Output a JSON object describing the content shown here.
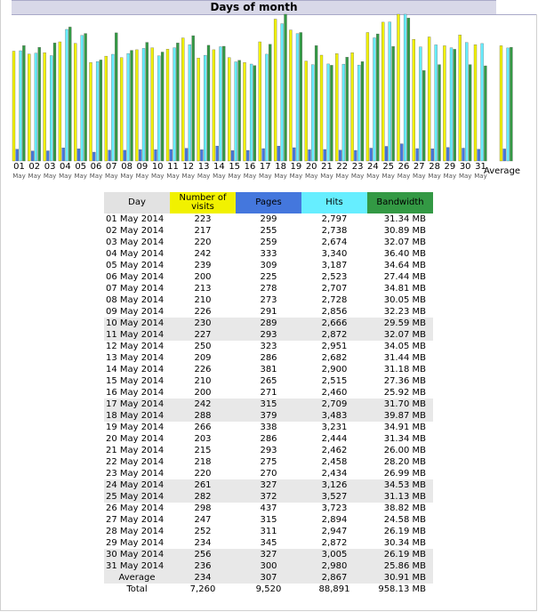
{
  "title": "Days of month",
  "average_label": "Average",
  "colors": {
    "visits": "#f1f100",
    "pages": "#4477dd",
    "hits": "#66eeff",
    "bandwidth": "#339944",
    "header_day": "#e2e2e2",
    "title_bg": "#d8d8e8"
  },
  "table": {
    "headers": {
      "day": "Day",
      "visits": "Number of visits",
      "pages": "Pages",
      "hits": "Hits",
      "bandwidth": "Bandwidth"
    },
    "rows": [
      {
        "day": "01 May 2014",
        "visits": "223",
        "pages": "299",
        "hits": "2,797",
        "bandwidth": "31.34 MB"
      },
      {
        "day": "02 May 2014",
        "visits": "217",
        "pages": "255",
        "hits": "2,738",
        "bandwidth": "30.89 MB"
      },
      {
        "day": "03 May 2014",
        "visits": "220",
        "pages": "259",
        "hits": "2,674",
        "bandwidth": "32.07 MB"
      },
      {
        "day": "04 May 2014",
        "visits": "242",
        "pages": "333",
        "hits": "3,340",
        "bandwidth": "36.40 MB"
      },
      {
        "day": "05 May 2014",
        "visits": "239",
        "pages": "309",
        "hits": "3,187",
        "bandwidth": "34.64 MB"
      },
      {
        "day": "06 May 2014",
        "visits": "200",
        "pages": "225",
        "hits": "2,523",
        "bandwidth": "27.44 MB"
      },
      {
        "day": "07 May 2014",
        "visits": "213",
        "pages": "278",
        "hits": "2,707",
        "bandwidth": "34.81 MB"
      },
      {
        "day": "08 May 2014",
        "visits": "210",
        "pages": "273",
        "hits": "2,728",
        "bandwidth": "30.05 MB"
      },
      {
        "day": "09 May 2014",
        "visits": "226",
        "pages": "291",
        "hits": "2,856",
        "bandwidth": "32.23 MB"
      },
      {
        "day": "10 May 2014",
        "visits": "230",
        "pages": "289",
        "hits": "2,666",
        "bandwidth": "29.59 MB"
      },
      {
        "day": "11 May 2014",
        "visits": "227",
        "pages": "293",
        "hits": "2,872",
        "bandwidth": "32.07 MB"
      },
      {
        "day": "12 May 2014",
        "visits": "250",
        "pages": "323",
        "hits": "2,951",
        "bandwidth": "34.05 MB"
      },
      {
        "day": "13 May 2014",
        "visits": "209",
        "pages": "286",
        "hits": "2,682",
        "bandwidth": "31.44 MB"
      },
      {
        "day": "14 May 2014",
        "visits": "226",
        "pages": "381",
        "hits": "2,900",
        "bandwidth": "31.18 MB"
      },
      {
        "day": "15 May 2014",
        "visits": "210",
        "pages": "265",
        "hits": "2,515",
        "bandwidth": "27.36 MB"
      },
      {
        "day": "16 May 2014",
        "visits": "200",
        "pages": "271",
        "hits": "2,460",
        "bandwidth": "25.92 MB"
      },
      {
        "day": "17 May 2014",
        "visits": "242",
        "pages": "315",
        "hits": "2,709",
        "bandwidth": "31.70 MB"
      },
      {
        "day": "18 May 2014",
        "visits": "288",
        "pages": "379",
        "hits": "3,483",
        "bandwidth": "39.87 MB"
      },
      {
        "day": "19 May 2014",
        "visits": "266",
        "pages": "338",
        "hits": "3,231",
        "bandwidth": "34.91 MB"
      },
      {
        "day": "20 May 2014",
        "visits": "203",
        "pages": "286",
        "hits": "2,444",
        "bandwidth": "31.34 MB"
      },
      {
        "day": "21 May 2014",
        "visits": "215",
        "pages": "293",
        "hits": "2,462",
        "bandwidth": "26.00 MB"
      },
      {
        "day": "22 May 2014",
        "visits": "218",
        "pages": "275",
        "hits": "2,458",
        "bandwidth": "28.20 MB"
      },
      {
        "day": "23 May 2014",
        "visits": "220",
        "pages": "270",
        "hits": "2,434",
        "bandwidth": "26.99 MB"
      },
      {
        "day": "24 May 2014",
        "visits": "261",
        "pages": "327",
        "hits": "3,126",
        "bandwidth": "34.53 MB"
      },
      {
        "day": "25 May 2014",
        "visits": "282",
        "pages": "372",
        "hits": "3,527",
        "bandwidth": "31.13 MB"
      },
      {
        "day": "26 May 2014",
        "visits": "298",
        "pages": "437",
        "hits": "3,723",
        "bandwidth": "38.82 MB"
      },
      {
        "day": "27 May 2014",
        "visits": "247",
        "pages": "315",
        "hits": "2,894",
        "bandwidth": "24.58 MB"
      },
      {
        "day": "28 May 2014",
        "visits": "252",
        "pages": "311",
        "hits": "2,947",
        "bandwidth": "26.19 MB"
      },
      {
        "day": "29 May 2014",
        "visits": "234",
        "pages": "345",
        "hits": "2,872",
        "bandwidth": "30.34 MB"
      },
      {
        "day": "30 May 2014",
        "visits": "256",
        "pages": "327",
        "hits": "3,005",
        "bandwidth": "26.19 MB"
      },
      {
        "day": "31 May 2014",
        "visits": "236",
        "pages": "300",
        "hits": "2,980",
        "bandwidth": "25.86 MB"
      }
    ],
    "average": {
      "day": "Average",
      "visits": "234",
      "pages": "307",
      "hits": "2,867",
      "bandwidth": "30.91 MB"
    },
    "total": {
      "day": "Total",
      "visits": "7,260",
      "pages": "9,520",
      "hits": "88,891",
      "bandwidth": "958.13 MB"
    }
  },
  "chart_data": {
    "type": "bar",
    "categories": [
      "01",
      "02",
      "03",
      "04",
      "05",
      "06",
      "07",
      "08",
      "09",
      "10",
      "11",
      "12",
      "13",
      "14",
      "15",
      "16",
      "17",
      "18",
      "19",
      "20",
      "21",
      "22",
      "23",
      "24",
      "25",
      "26",
      "27",
      "28",
      "29",
      "30",
      "31"
    ],
    "month_label": "May",
    "series": [
      {
        "name": "Number of visits",
        "values": [
          223,
          217,
          220,
          242,
          239,
          200,
          213,
          210,
          226,
          230,
          227,
          250,
          209,
          226,
          210,
          200,
          242,
          288,
          266,
          203,
          215,
          218,
          220,
          261,
          282,
          298,
          247,
          252,
          234,
          256,
          236
        ]
      },
      {
        "name": "Pages",
        "values": [
          299,
          255,
          259,
          333,
          309,
          225,
          278,
          273,
          291,
          289,
          293,
          323,
          286,
          381,
          265,
          271,
          315,
          379,
          338,
          286,
          293,
          275,
          270,
          327,
          372,
          437,
          315,
          311,
          345,
          327,
          300
        ]
      },
      {
        "name": "Hits",
        "values": [
          2797,
          2738,
          2674,
          3340,
          3187,
          2523,
          2707,
          2728,
          2856,
          2666,
          2872,
          2951,
          2682,
          2900,
          2515,
          2460,
          2709,
          3483,
          3231,
          2444,
          2462,
          2458,
          2434,
          3126,
          3527,
          3723,
          2894,
          2947,
          2872,
          3005,
          2980
        ]
      },
      {
        "name": "Bandwidth",
        "values": [
          31.34,
          30.89,
          32.07,
          36.4,
          34.64,
          27.44,
          34.81,
          30.05,
          32.23,
          29.59,
          32.07,
          34.05,
          31.44,
          31.18,
          27.36,
          25.92,
          31.7,
          39.87,
          34.91,
          31.34,
          26.0,
          28.2,
          26.99,
          34.53,
          31.13,
          38.82,
          24.58,
          26.19,
          30.34,
          26.19,
          25.86
        ]
      }
    ],
    "average": {
      "visits": 234,
      "pages": 307,
      "hits": 2867,
      "bandwidth": 30.91
    }
  }
}
